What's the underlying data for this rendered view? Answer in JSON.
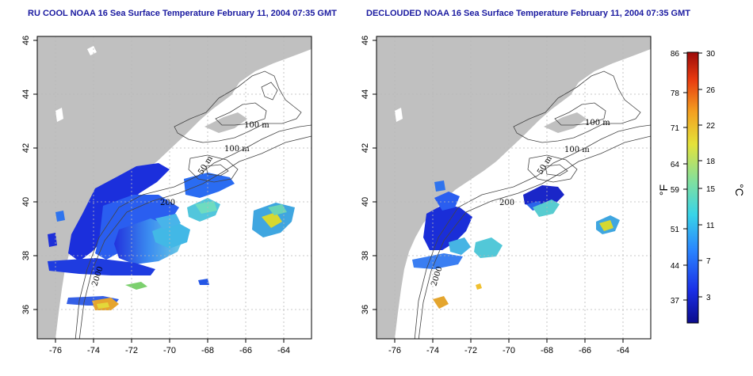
{
  "panels": [
    {
      "id": "left",
      "title": "RU COOL NOAA 16 Sea Surface Temperature February 11, 2004 07:35 GMT"
    },
    {
      "id": "right",
      "title": "DECLOUDED NOAA 16 Sea Surface Temperature February 11, 2004 07:35 GMT"
    }
  ],
  "axes": {
    "x_ticks": [
      "-76",
      "-74",
      "-72",
      "-70",
      "-68",
      "-66",
      "-64"
    ],
    "y_ticks": [
      "36",
      "38",
      "40",
      "42",
      "44",
      "46"
    ]
  },
  "contour_labels": {
    "left": [
      "100 m",
      "100 m",
      "50 m",
      "200",
      "2000"
    ],
    "right": [
      "100 m",
      "100 m",
      "50 m",
      "200",
      "2000"
    ]
  },
  "colorbar": {
    "fahrenheit_label": "°F",
    "celsius_label": "°C",
    "fahrenheit_ticks": [
      "86",
      "78",
      "71",
      "64",
      "59",
      "51",
      "44",
      "37"
    ],
    "celsius_ticks": [
      "30",
      "26",
      "22",
      "18",
      "15",
      "11",
      "7",
      "3"
    ],
    "colors": [
      "#0c0c8c",
      "#1a2ee6",
      "#2a86ff",
      "#38d4e8",
      "#7fe0a0",
      "#e4e23a",
      "#f4a020",
      "#e83a10",
      "#9c0a0a"
    ]
  },
  "colors": {
    "land": "#c0c0c0",
    "title": "#1a1aa0",
    "grid": "#b8b8b8"
  }
}
